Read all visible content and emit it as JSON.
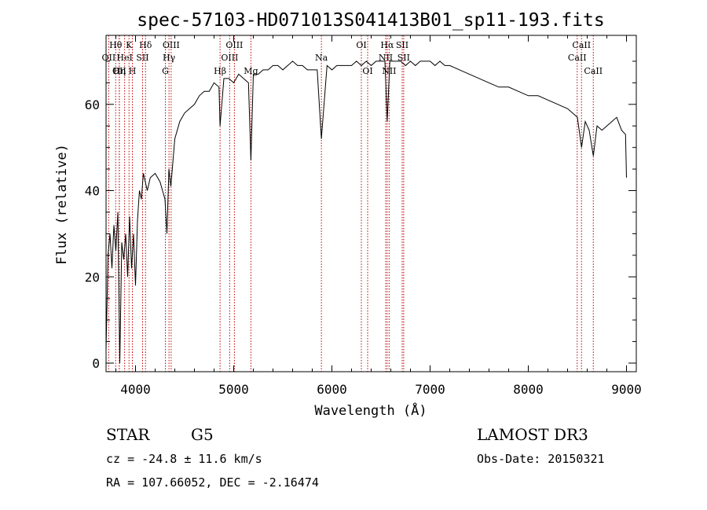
{
  "title": "spec-57103-HD071013S041413B01_sp11-193.fits",
  "info": {
    "class_label": "STAR",
    "subclass_label": "G5",
    "survey": "LAMOST DR3",
    "cz_text": "cz = -24.8 ± 11.6 km/s",
    "obs_date_text": "Obs-Date: 20150321",
    "radec_text": "RA = 107.66052, DEC =  -2.16474"
  },
  "chart_data": {
    "type": "line",
    "xlabel": "Wavelength (Å)",
    "ylabel": "Flux (relative)",
    "xlim": [
      3700,
      9100
    ],
    "ylim": [
      -2,
      76
    ],
    "xticks": [
      4000,
      5000,
      6000,
      7000,
      8000,
      9000
    ],
    "yticks": [
      0,
      20,
      40,
      60
    ],
    "series": [
      {
        "x": [
          3700,
          3720,
          3740,
          3760,
          3780,
          3800,
          3820,
          3840,
          3860,
          3880,
          3900,
          3920,
          3940,
          3960,
          3980,
          4000,
          4020,
          4040,
          4060,
          4080,
          4100,
          4120,
          4150,
          4200,
          4250,
          4300,
          4320,
          4340,
          4360,
          4400,
          4450,
          4500,
          4550,
          4600,
          4650,
          4700,
          4750,
          4800,
          4850,
          4861,
          4900,
          4950,
          5000,
          5050,
          5100,
          5150,
          5175,
          5200,
          5250,
          5300,
          5350,
          5400,
          5450,
          5500,
          5550,
          5600,
          5650,
          5700,
          5750,
          5800,
          5850,
          5893,
          5950,
          6000,
          6050,
          6100,
          6150,
          6200,
          6250,
          6300,
          6350,
          6400,
          6450,
          6500,
          6540,
          6563,
          6590,
          6650,
          6700,
          6750,
          6800,
          6850,
          6900,
          6950,
          7000,
          7050,
          7100,
          7150,
          7200,
          7300,
          7400,
          7500,
          7600,
          7700,
          7800,
          7900,
          8000,
          8100,
          8200,
          8300,
          8400,
          8450,
          8500,
          8542,
          8580,
          8620,
          8662,
          8700,
          8750,
          8800,
          8850,
          8900,
          8950,
          8990,
          9000
        ],
        "values": [
          3,
          25,
          30,
          22,
          32,
          26,
          35,
          0,
          28,
          24,
          30,
          20,
          34,
          22,
          30,
          18,
          33,
          40,
          38,
          44,
          42,
          40,
          43,
          44,
          42,
          38,
          30,
          45,
          41,
          52,
          56,
          58,
          59,
          60,
          62,
          63,
          63,
          65,
          64,
          55,
          66,
          66,
          65,
          67,
          66,
          65,
          47,
          67,
          67,
          68,
          68,
          69,
          69,
          68,
          69,
          70,
          69,
          69,
          68,
          68,
          68,
          52,
          69,
          68,
          69,
          69,
          69,
          69,
          70,
          69,
          70,
          69,
          70,
          70,
          70,
          56,
          70,
          70,
          70,
          69,
          70,
          69,
          70,
          70,
          70,
          69,
          70,
          69,
          69,
          68,
          67,
          66,
          65,
          64,
          64,
          63,
          62,
          62,
          61,
          60,
          59,
          58,
          57,
          50,
          56,
          54,
          48,
          55,
          54,
          55,
          56,
          57,
          54,
          53,
          43
        ]
      }
    ],
    "lines": [
      {
        "wl": 3727,
        "label": "OII",
        "row": 2
      },
      {
        "wl": 3798,
        "label": "Hθ",
        "row": 1
      },
      {
        "wl": 3835,
        "label": "OII",
        "row": 3
      },
      {
        "wl": 3835,
        "label": "Hη",
        "row": 3
      },
      {
        "wl": 3889,
        "label": "HeI",
        "row": 2
      },
      {
        "wl": 3934,
        "label": "K",
        "row": 1
      },
      {
        "wl": 3968,
        "label": "H",
        "row": 3
      },
      {
        "wl": 4072,
        "label": "SII",
        "row": 2
      },
      {
        "wl": 4102,
        "label": "Hδ",
        "row": 1
      },
      {
        "wl": 4304,
        "label": "G",
        "row": 3
      },
      {
        "wl": 4341,
        "label": "Hγ",
        "row": 2
      },
      {
        "wl": 4363,
        "label": "OIII",
        "row": 1
      },
      {
        "wl": 4861,
        "label": "Hβ",
        "row": 3
      },
      {
        "wl": 4959,
        "label": "OIII",
        "row": 2
      },
      {
        "wl": 5007,
        "label": "OIII",
        "row": 1
      },
      {
        "wl": 5175,
        "label": "Mg",
        "row": 3
      },
      {
        "wl": 5893,
        "label": "Na",
        "row": 2
      },
      {
        "wl": 6300,
        "label": "OI",
        "row": 1
      },
      {
        "wl": 6364,
        "label": "OI",
        "row": 3
      },
      {
        "wl": 6548,
        "label": "NII",
        "row": 2
      },
      {
        "wl": 6563,
        "label": "Hα",
        "row": 1
      },
      {
        "wl": 6583,
        "label": "NII",
        "row": 3
      },
      {
        "wl": 6716,
        "label": "SII",
        "row": 1
      },
      {
        "wl": 6731,
        "label": "SII",
        "row": 2
      },
      {
        "wl": 8498,
        "label": "CaII",
        "row": 2
      },
      {
        "wl": 8542,
        "label": "CaII",
        "row": 1
      },
      {
        "wl": 8662,
        "label": "CaII",
        "row": 3
      }
    ],
    "colors": {
      "spectrum": "#000000",
      "line_markers": "#c00000",
      "axes": "#000000"
    }
  }
}
